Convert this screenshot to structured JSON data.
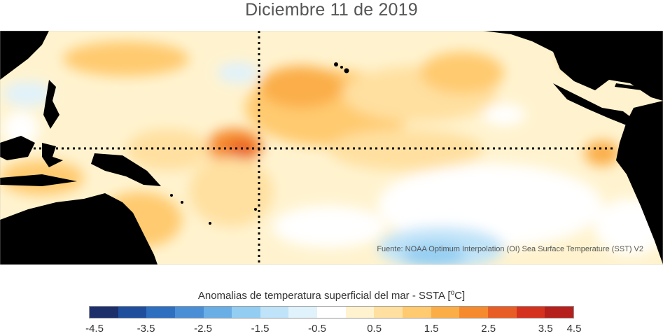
{
  "title": "Diciembre 11 de 2019",
  "source": "Fuente: NOAA Optimum Interpolation (OI) Sea Surface Temperature (SST) V2",
  "colorbar": {
    "label": "Anomalias de temperatura superficial del mar - SSTA",
    "unit_prefix": "[",
    "unit_sup": "o",
    "unit_suffix": "C]",
    "colors": [
      "#1c2f6b",
      "#1f4f9c",
      "#2f6fc0",
      "#4a8fd6",
      "#6aaee6",
      "#93cdf2",
      "#bfe3f8",
      "#e0f2fb",
      "#ffffff",
      "#fff3cf",
      "#ffe0a0",
      "#ffca70",
      "#fbae48",
      "#f58a2e",
      "#e85d25",
      "#d4321f",
      "#b51f1c"
    ],
    "ticks": [
      "-4.5",
      "-3.5",
      "-2.5",
      "-1.5",
      "-0.5",
      "0.5",
      "1.5",
      "2.5",
      "3.5",
      "4.5"
    ]
  },
  "map": {
    "land_color": "#000000",
    "ocean_base": "#fff6dc",
    "reference_lines": [
      "equator",
      "date-line-180"
    ]
  }
}
